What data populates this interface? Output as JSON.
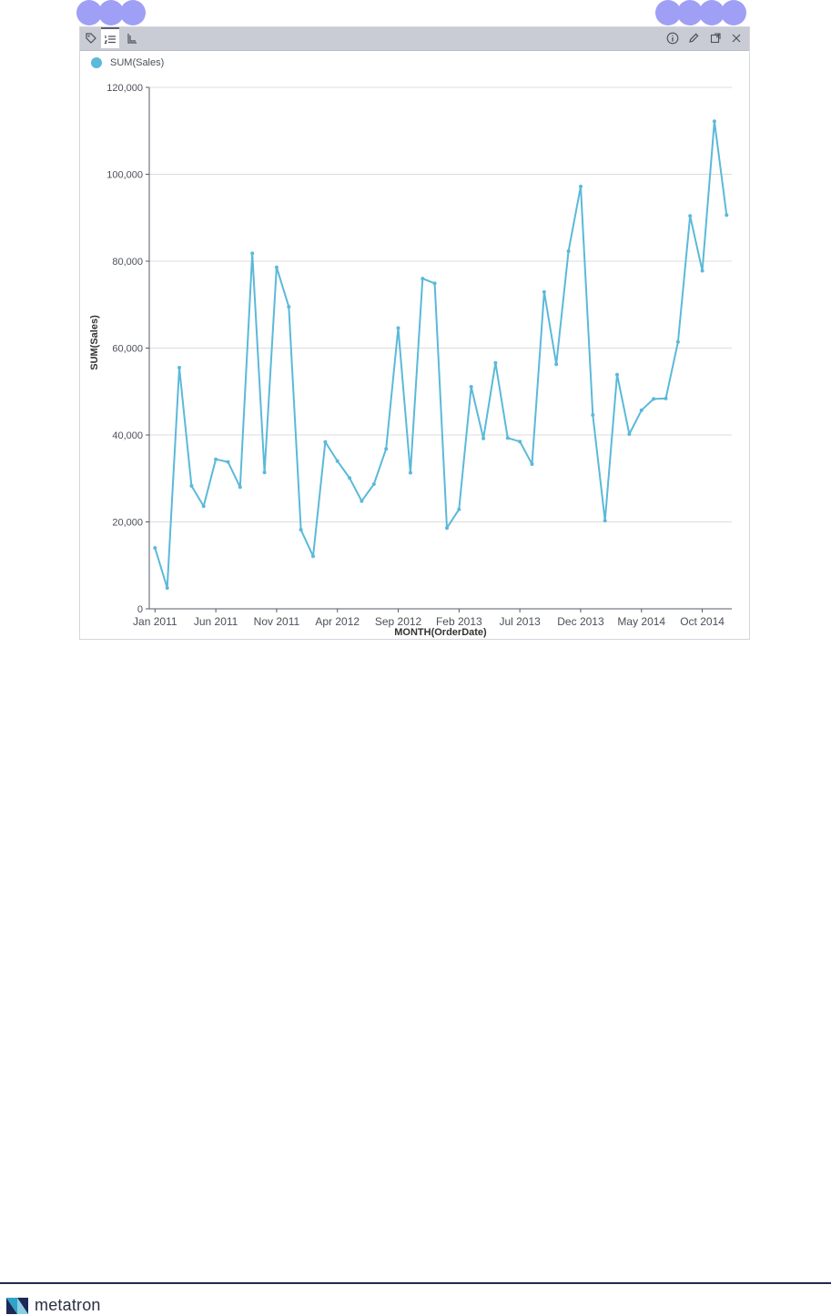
{
  "colors": {
    "series": "#5bb9d9",
    "toolbar": "#c9ccd5",
    "grid": "#dcdcdc",
    "axis": "#555b66",
    "footer": "#1f2b4d"
  },
  "toolbar": {
    "left_icons": [
      "tag-icon",
      "list-numbered-icon",
      "axis-icon"
    ],
    "right_icons": [
      "info-icon",
      "pencil-icon",
      "expand-icon",
      "close-icon"
    ]
  },
  "legend": {
    "label": "SUM(Sales)"
  },
  "footer": {
    "brand": "metatron"
  },
  "chart_data": {
    "type": "line",
    "title": "",
    "xlabel": "MONTH(OrderDate)",
    "ylabel": "SUM(Sales)",
    "ylim": [
      0,
      120000
    ],
    "yticks": [
      "0",
      "20,000",
      "40,000",
      "60,000",
      "80,000",
      "100,000",
      "120,000"
    ],
    "xtick_labels": [
      {
        "label": "Jan 2011",
        "index": 0
      },
      {
        "label": "Jun 2011",
        "index": 5
      },
      {
        "label": "Nov 2011",
        "index": 10
      },
      {
        "label": "Apr 2012",
        "index": 15
      },
      {
        "label": "Sep 2012",
        "index": 20
      },
      {
        "label": "Feb 2013",
        "index": 25
      },
      {
        "label": "Jul 2013",
        "index": 30
      },
      {
        "label": "Dec 2013",
        "index": 35
      },
      {
        "label": "May 2014",
        "index": 40
      },
      {
        "label": "Oct 2014",
        "index": 45
      }
    ],
    "grid": true,
    "legend_position": "top-left",
    "x": [
      "Jan 2011",
      "Feb 2011",
      "Mar 2011",
      "Apr 2011",
      "May 2011",
      "Jun 2011",
      "Jul 2011",
      "Aug 2011",
      "Sep 2011",
      "Oct 2011",
      "Nov 2011",
      "Dec 2011",
      "Jan 2012",
      "Feb 2012",
      "Mar 2012",
      "Apr 2012",
      "May 2012",
      "Jun 2012",
      "Jul 2012",
      "Aug 2012",
      "Sep 2012",
      "Oct 2012",
      "Nov 2012",
      "Dec 2012",
      "Jan 2013",
      "Feb 2013",
      "Mar 2013",
      "Apr 2013",
      "May 2013",
      "Jun 2013",
      "Jul 2013",
      "Aug 2013",
      "Sep 2013",
      "Oct 2013",
      "Nov 2013",
      "Dec 2013",
      "Jan 2014",
      "Feb 2014",
      "Mar 2014",
      "Apr 2014",
      "May 2014",
      "Jun 2014",
      "Jul 2014",
      "Aug 2014",
      "Sep 2014",
      "Oct 2014",
      "Nov 2014",
      "Dec 2014"
    ],
    "series": [
      {
        "name": "SUM(Sales)",
        "values": [
          14000,
          4800,
          55500,
          28300,
          23600,
          34400,
          33800,
          28000,
          81800,
          31400,
          78600,
          69500,
          18200,
          12100,
          38400,
          34000,
          30100,
          24800,
          28700,
          36800,
          64600,
          31300,
          76000,
          74900,
          18600,
          22900,
          51100,
          39200,
          56600,
          39300,
          38500,
          33300,
          72900,
          56300,
          82300,
          97200,
          44600,
          20300,
          53900,
          40200,
          45700,
          48300,
          48400,
          61400,
          90400,
          77800,
          112200,
          90600
        ]
      }
    ]
  }
}
